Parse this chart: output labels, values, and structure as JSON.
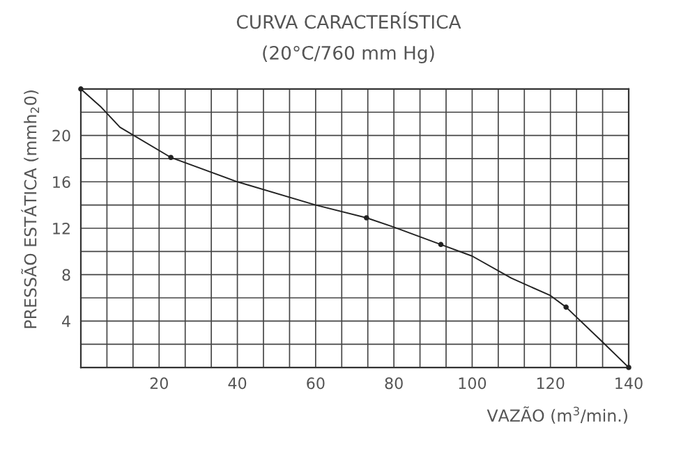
{
  "chart_data": {
    "type": "line",
    "title": "CURVA CARACTERÍSTICA",
    "subtitle": "(20°C/760 mm Hg)",
    "xlabel": "VAZÃO (m$^{3}$/min.)",
    "ylabel": "PRESSÃO ESTÁTICA (mmh$_{2}$0)",
    "xlim": [
      0,
      140
    ],
    "ylim": [
      0,
      24
    ],
    "xticks": [
      {
        "value": 0,
        "label": null
      },
      {
        "value": 6.667,
        "label": null
      },
      {
        "value": 13.333,
        "label": null
      },
      20,
      {
        "value": 26.667,
        "label": null
      },
      {
        "value": 33.333,
        "label": null
      },
      40,
      {
        "value": 46.667,
        "label": null
      },
      {
        "value": 53.333,
        "label": null
      },
      60,
      {
        "value": 66.667,
        "label": null
      },
      {
        "value": 73.333,
        "label": null
      },
      80,
      {
        "value": 86.667,
        "label": null
      },
      {
        "value": 93.333,
        "label": null
      },
      100,
      {
        "value": 106.667,
        "label": null
      },
      {
        "value": 113.333,
        "label": null
      },
      120,
      {
        "value": 126.667,
        "label": null
      },
      {
        "value": 133.333,
        "label": null
      },
      140
    ],
    "yticks": [
      {
        "value": 0,
        "label": null
      },
      {
        "value": 2,
        "label": null
      },
      4,
      {
        "value": 6,
        "label": null
      },
      8,
      {
        "value": 10,
        "label": null
      },
      12,
      {
        "value": 14,
        "label": null
      },
      16,
      {
        "value": 18,
        "label": null
      },
      20,
      {
        "value": 22,
        "label": null
      },
      {
        "value": 24,
        "label": null
      }
    ],
    "grid": true,
    "series": [
      {
        "color": "#222222",
        "marker": "none",
        "x": [
          0,
          5,
          10,
          23,
          40,
          60,
          73,
          80,
          92,
          100,
          110,
          120,
          124,
          133,
          140
        ],
        "values": [
          24,
          22.5,
          20.7,
          18.1,
          16,
          14,
          12.9,
          12.1,
          10.6,
          9.6,
          7.7,
          6.2,
          5.2,
          2.3,
          0
        ]
      },
      {
        "type": "scatter",
        "color": "#222222",
        "marker": "circle",
        "x": [
          0,
          23,
          73,
          92,
          124,
          140
        ],
        "values": [
          24,
          18.1,
          12.9,
          10.6,
          5.2,
          0
        ]
      }
    ]
  }
}
